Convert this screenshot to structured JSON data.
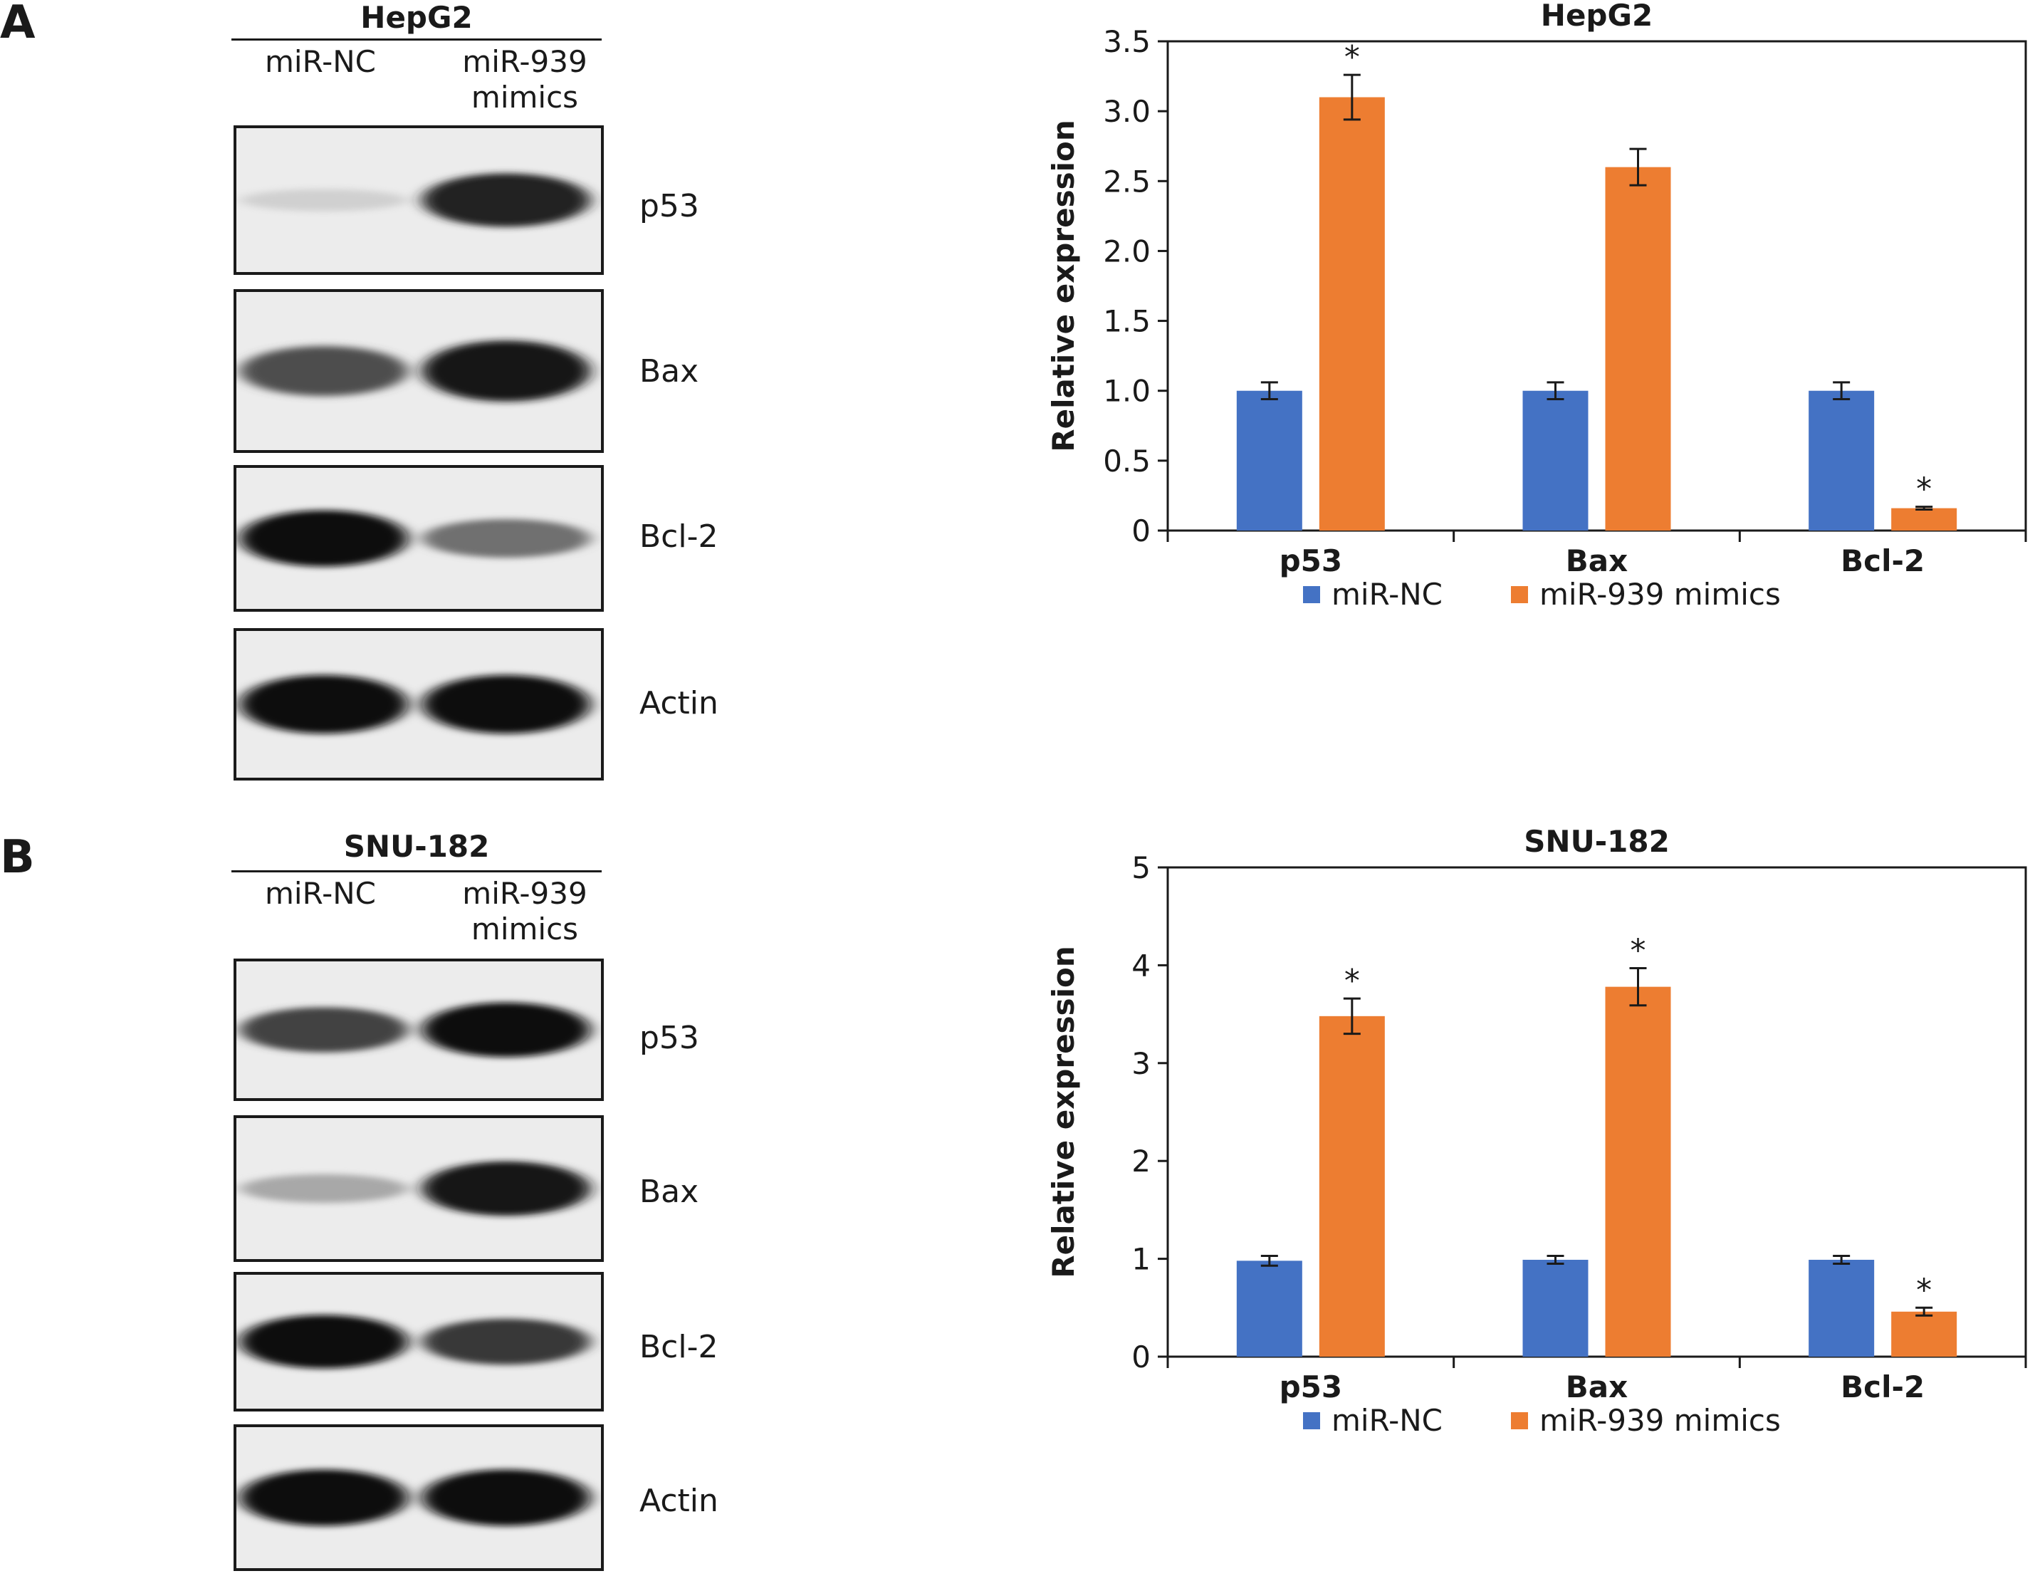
{
  "panels": [
    {
      "letter": "A",
      "cell_line": "HepG2",
      "lanes": [
        "miR-NC",
        "miR-939\nmimics"
      ],
      "blots": [
        {
          "label": "p53",
          "bands": [
            0.12,
            0.9
          ]
        },
        {
          "label": "Bax",
          "bands": [
            0.7,
            0.95
          ]
        },
        {
          "label": "Bcl-2",
          "bands": [
            1.0,
            0.55
          ]
        },
        {
          "label": "Actin",
          "bands": [
            1.0,
            1.0
          ]
        }
      ]
    },
    {
      "letter": "B",
      "cell_line": "SNU-182",
      "lanes": [
        "miR-NC",
        "miR-939\nmimics"
      ],
      "blots": [
        {
          "label": "p53",
          "bands": [
            0.75,
            1.0
          ]
        },
        {
          "label": "Bax",
          "bands": [
            0.3,
            0.95
          ]
        },
        {
          "label": "Bcl-2",
          "bands": [
            1.0,
            0.8
          ]
        },
        {
          "label": "Actin",
          "bands": [
            1.0,
            1.0
          ]
        }
      ]
    }
  ],
  "colors": {
    "miR-NC": "#4472c4",
    "miR-939 mimics": "#ed7d31"
  },
  "chart_data": [
    {
      "type": "bar",
      "title": "HepG2",
      "ylabel": "Relative expression",
      "xlabel": "",
      "categories": [
        "p53",
        "Bax",
        "Bcl-2"
      ],
      "ylim": [
        0,
        3.5
      ],
      "yticks": [
        "0",
        "0.5",
        "1.0",
        "1.5",
        "2.0",
        "2.5",
        "3.0",
        "3.5"
      ],
      "ytick_values": [
        0,
        0.5,
        1.0,
        1.5,
        2.0,
        2.5,
        3.0,
        3.5
      ],
      "legend_position": "bottom",
      "series": [
        {
          "name": "miR-NC",
          "values": [
            1.0,
            1.0,
            1.0
          ],
          "errors": [
            0.06,
            0.06,
            0.06
          ],
          "significant": [
            false,
            false,
            false
          ]
        },
        {
          "name": "miR-939 mimics",
          "values": [
            3.1,
            2.6,
            0.16
          ],
          "errors": [
            0.16,
            0.13,
            0.01
          ],
          "significant": [
            true,
            false,
            true
          ]
        }
      ],
      "significance_marker": "*"
    },
    {
      "type": "bar",
      "title": "SNU-182",
      "ylabel": "Relative expression",
      "xlabel": "",
      "categories": [
        "p53",
        "Bax",
        "Bcl-2"
      ],
      "ylim": [
        0,
        5
      ],
      "yticks": [
        "0",
        "1",
        "2",
        "3",
        "4",
        "5"
      ],
      "ytick_values": [
        0,
        1,
        2,
        3,
        4,
        5
      ],
      "legend_position": "bottom",
      "series": [
        {
          "name": "miR-NC",
          "values": [
            0.98,
            0.99,
            0.99
          ],
          "errors": [
            0.05,
            0.04,
            0.04
          ],
          "significant": [
            false,
            false,
            false
          ]
        },
        {
          "name": "miR-939 mimics",
          "values": [
            3.48,
            3.78,
            0.46
          ],
          "errors": [
            0.18,
            0.19,
            0.04
          ],
          "significant": [
            true,
            true,
            true
          ]
        }
      ],
      "significance_marker": "*"
    }
  ]
}
